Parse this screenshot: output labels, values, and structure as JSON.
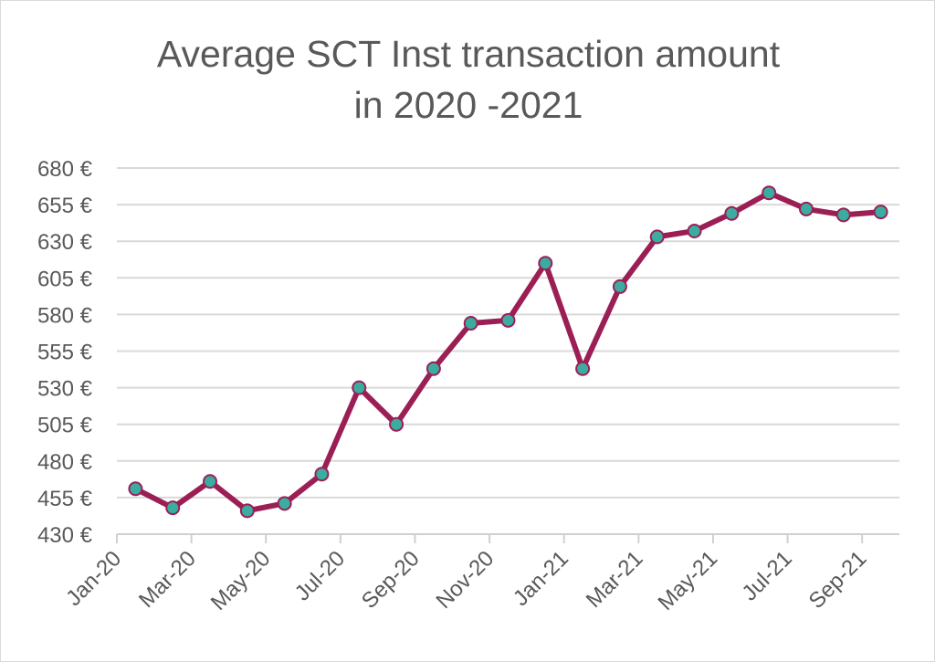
{
  "chart_data": {
    "type": "line",
    "title": [
      "Average SCT Inst transaction amount",
      "in 2020 -2021"
    ],
    "xlabel": "",
    "ylabel": "",
    "categories": [
      "Jan-20",
      "Feb-20",
      "Mar-20",
      "Apr-20",
      "May-20",
      "Jun-20",
      "Jul-20",
      "Aug-20",
      "Sep-20",
      "Oct-20",
      "Nov-20",
      "Dec-20",
      "Jan-21",
      "Feb-21",
      "Mar-21",
      "Apr-21",
      "May-21",
      "Jun-21",
      "Jul-21",
      "Aug-21",
      "Sep-21"
    ],
    "x_tick_labels": [
      "Jan-20",
      "Mar-20",
      "May-20",
      "Jul-20",
      "Sep-20",
      "Nov-20",
      "Jan-21",
      "Mar-21",
      "May-21",
      "Jul-21",
      "Sep-21"
    ],
    "values": [
      461,
      448,
      466,
      446,
      451,
      471,
      530,
      505,
      543,
      574,
      576,
      615,
      543,
      599,
      633,
      637,
      649,
      663,
      652,
      648,
      650
    ],
    "ylim": [
      430,
      680
    ],
    "y_tick_labels": [
      "430 €",
      "455 €",
      "480 €",
      "505 €",
      "530 €",
      "555 €",
      "580 €",
      "605 €",
      "630 €",
      "655 €",
      "680 €"
    ],
    "grid": "horizontal",
    "legend": "none",
    "colors": {
      "line": "#9b1f55",
      "marker_fill": "#3aada0",
      "grid": "#d9d9d9",
      "text": "#595959"
    }
  }
}
